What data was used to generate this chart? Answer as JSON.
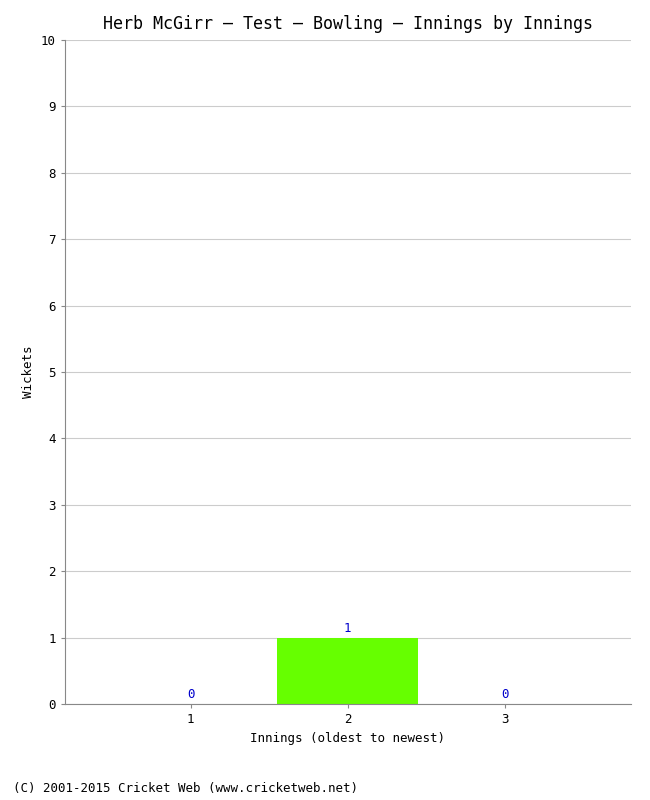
{
  "title": "Herb McGirr – Test – Bowling – Innings by Innings",
  "xlabel": "Innings (oldest to newest)",
  "ylabel": "Wickets",
  "categories": [
    1,
    2,
    3
  ],
  "values": [
    0,
    1,
    0
  ],
  "bar_color_green": "#66ff00",
  "ylim": [
    0,
    10
  ],
  "yticks": [
    0,
    1,
    2,
    3,
    4,
    5,
    6,
    7,
    8,
    9,
    10
  ],
  "xticks": [
    1,
    2,
    3
  ],
  "annotation_color": "#0000cc",
  "background_color": "#ffffff",
  "footer": "(C) 2001-2015 Cricket Web (www.cricketweb.net)",
  "title_fontsize": 12,
  "axis_label_fontsize": 9,
  "tick_fontsize": 9,
  "annotation_fontsize": 9,
  "footer_fontsize": 9,
  "bar_width": 0.9
}
